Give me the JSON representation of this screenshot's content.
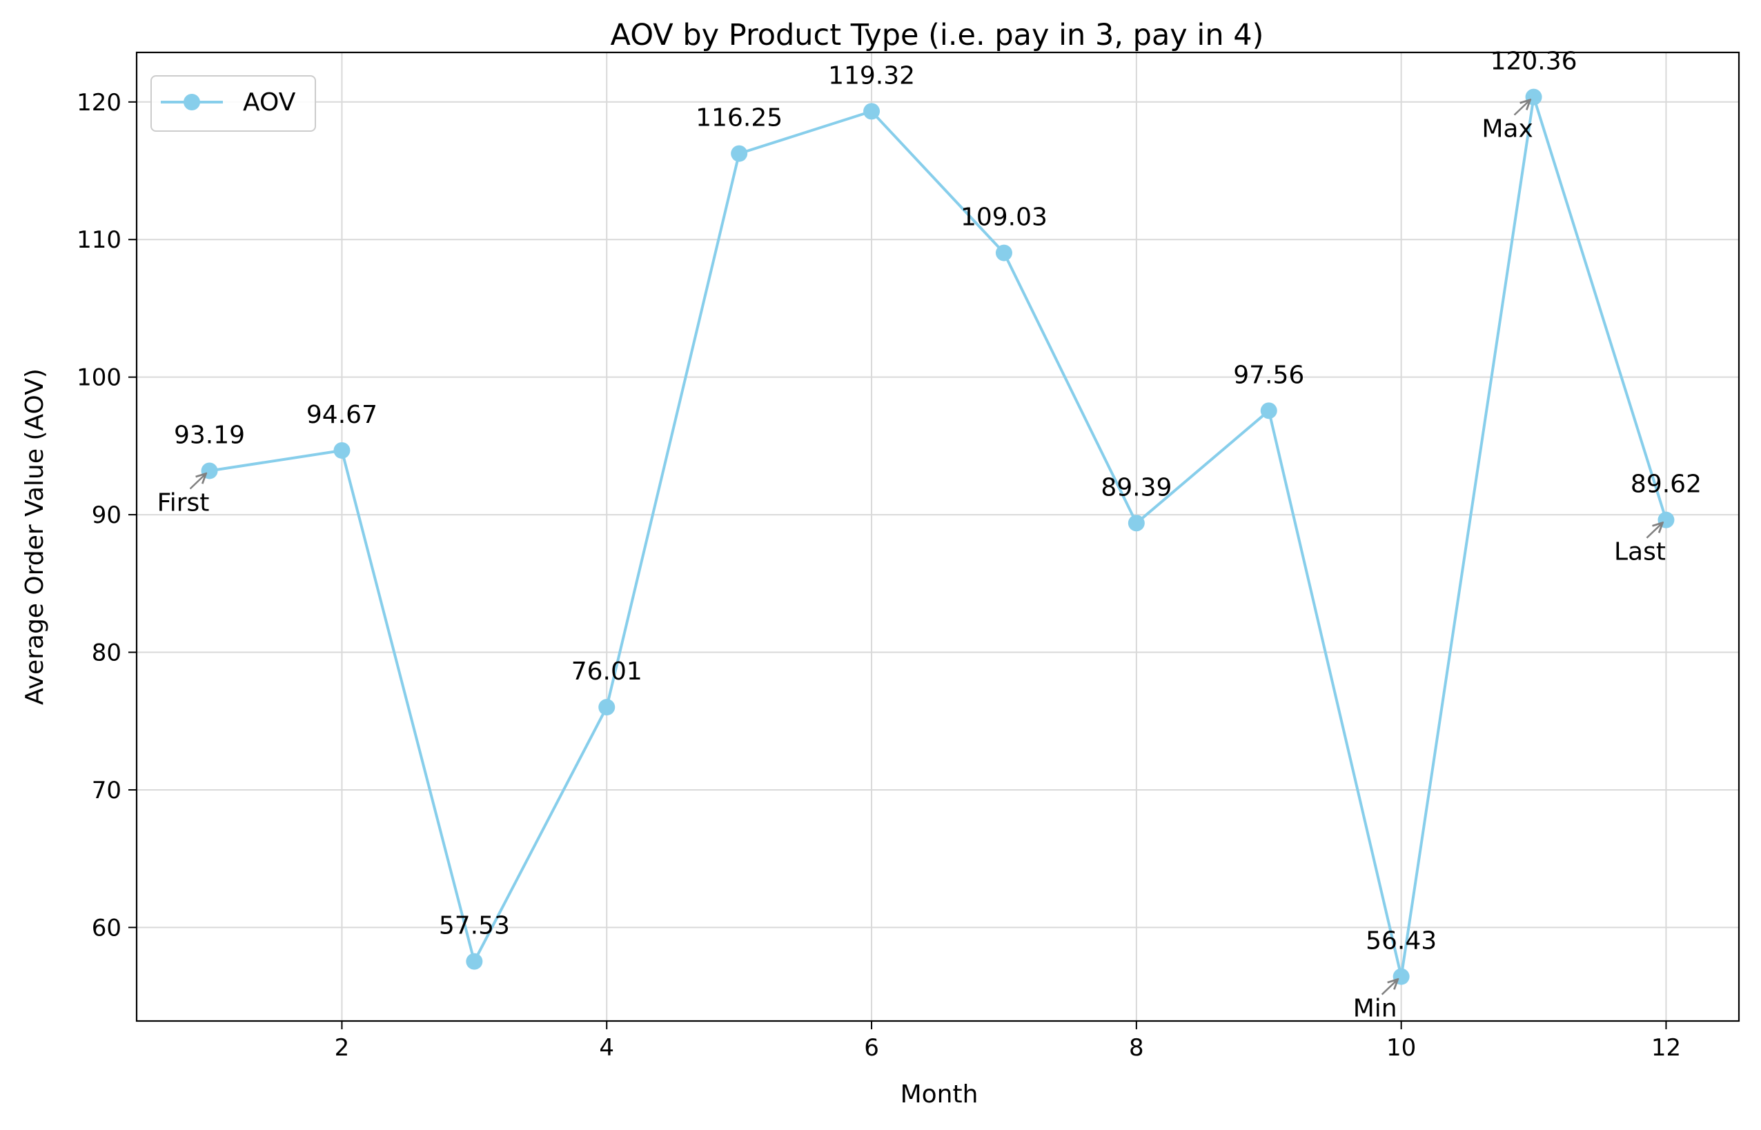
{
  "chart_data": {
    "type": "line",
    "title": "AOV by Product Type (i.e. pay in 3, pay in 4)",
    "xlabel": "Month",
    "ylabel": "Average Order Value (AOV)",
    "xlim": [
      0.45,
      12.55
    ],
    "ylim": [
      53.2,
      123.6
    ],
    "xticks": [
      2,
      4,
      6,
      8,
      10,
      12
    ],
    "yticks": [
      60,
      70,
      80,
      90,
      100,
      110,
      120
    ],
    "grid": true,
    "legend_position": "top-left",
    "series": [
      {
        "name": "AOV",
        "color": "#87CEEB",
        "marker": "circle",
        "x": [
          1,
          2,
          3,
          4,
          5,
          6,
          7,
          8,
          9,
          10,
          11,
          12
        ],
        "values": [
          93.19,
          94.67,
          57.53,
          76.01,
          116.25,
          119.32,
          109.03,
          89.39,
          97.56,
          56.43,
          120.36,
          89.62
        ],
        "value_labels": [
          "93.19",
          "94.67",
          "57.53",
          "76.01",
          "116.25",
          "119.32",
          "109.03",
          "89.39",
          "97.56",
          "56.43",
          "120.36",
          "89.62"
        ]
      }
    ],
    "annotations": [
      {
        "text": "First",
        "x": 1,
        "y": 93.19
      },
      {
        "text": "Min",
        "x": 10,
        "y": 56.43
      },
      {
        "text": "Max",
        "x": 11,
        "y": 120.36
      },
      {
        "text": "Last",
        "x": 12,
        "y": 89.62
      }
    ]
  }
}
